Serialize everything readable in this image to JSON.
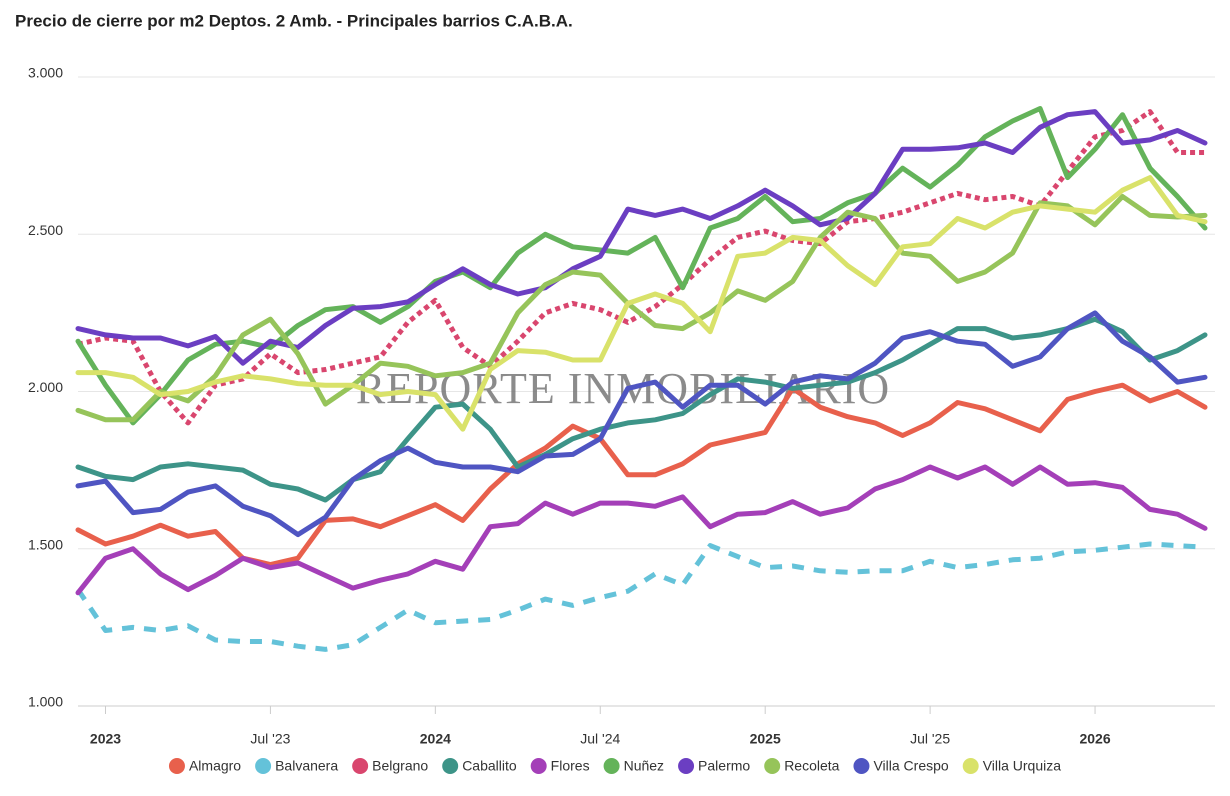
{
  "chart_data": {
    "type": "line",
    "title": "Precio de cierre por m2 Deptos. 2 Amb. - Principales barrios C.A.B.A.",
    "watermark": "REPORTE INMOBILIARIO",
    "x": [
      "2022-12",
      "2023-01",
      "2023-02",
      "2023-03",
      "2023-04",
      "2023-05",
      "2023-06",
      "2023-07",
      "2023-08",
      "2023-09",
      "2023-10",
      "2023-11",
      "2023-12",
      "2024-01",
      "2024-02",
      "2024-03",
      "2024-04",
      "2024-05",
      "2024-06",
      "2024-07",
      "2024-08",
      "2024-09",
      "2024-10",
      "2024-11",
      "2024-12",
      "2025-01",
      "2025-02",
      "2025-03",
      "2025-04",
      "2025-05",
      "2025-06",
      "2025-07",
      "2025-08",
      "2025-09",
      "2025-10",
      "2025-11",
      "2025-12",
      "2026-01",
      "2026-02",
      "2026-03",
      "2026-04",
      "2026-05"
    ],
    "xlim": [
      "2022-12",
      "2026-05"
    ],
    "xticks": [
      {
        "value": "2023-01",
        "label": "2023"
      },
      {
        "value": "2023-07",
        "label": "Jul '23"
      },
      {
        "value": "2024-01",
        "label": "2024"
      },
      {
        "value": "2024-07",
        "label": "Jul '24"
      },
      {
        "value": "2025-01",
        "label": "2025"
      },
      {
        "value": "2025-07",
        "label": "Jul '25"
      },
      {
        "value": "2026-01",
        "label": "2026"
      }
    ],
    "ylim": [
      1000,
      3000
    ],
    "yticks": [
      {
        "value": 1000,
        "label": "1.000"
      },
      {
        "value": 1500,
        "label": "1.500"
      },
      {
        "value": 2000,
        "label": "2.000"
      },
      {
        "value": 2500,
        "label": "2.500"
      },
      {
        "value": 3000,
        "label": "3.000"
      }
    ],
    "grid": true,
    "legend": "bottom",
    "series": [
      {
        "name": "Almagro",
        "color": "#e8604c",
        "style": "solid",
        "values": [
          1560,
          1515,
          1540,
          1575,
          1540,
          1555,
          1470,
          1450,
          1470,
          1590,
          1595,
          1570,
          1605,
          1640,
          1590,
          1690,
          1770,
          1820,
          1890,
          1850,
          1735,
          1735,
          1770,
          1830,
          1850,
          1870,
          2010,
          1950,
          1920,
          1900,
          1860,
          1900,
          1965,
          1945,
          1910,
          1875,
          1975,
          2000,
          2020,
          1970,
          2000,
          1950
        ]
      },
      {
        "name": "Balvanera",
        "color": "#64c2d9",
        "style": "dashed",
        "values": [
          1370,
          1240,
          1250,
          1240,
          1255,
          1210,
          1205,
          1205,
          1190,
          1180,
          1195,
          1250,
          1305,
          1265,
          1270,
          1275,
          1305,
          1340,
          1320,
          1345,
          1365,
          1420,
          1385,
          1510,
          1475,
          1440,
          1445,
          1430,
          1425,
          1430,
          1430,
          1460,
          1440,
          1450,
          1465,
          1470,
          1490,
          1495,
          1505,
          1515,
          1510,
          1505
        ]
      },
      {
        "name": "Belgrano",
        "color": "#d9466e",
        "style": "dotted",
        "values": [
          2150,
          2170,
          2160,
          2000,
          1900,
          2020,
          2040,
          2120,
          2060,
          2070,
          2090,
          2110,
          2220,
          2290,
          2140,
          2080,
          2160,
          2250,
          2280,
          2260,
          2220,
          2270,
          2340,
          2420,
          2490,
          2510,
          2480,
          2470,
          2540,
          2550,
          2570,
          2600,
          2630,
          2610,
          2620,
          2590,
          2700,
          2810,
          2830,
          2890,
          2760,
          2760
        ]
      },
      {
        "name": "Caballito",
        "color": "#3d9488",
        "style": "solid",
        "values": [
          1760,
          1730,
          1720,
          1760,
          1770,
          1760,
          1750,
          1705,
          1690,
          1655,
          1720,
          1745,
          1850,
          1950,
          1960,
          1880,
          1760,
          1800,
          1850,
          1880,
          1900,
          1910,
          1930,
          1990,
          2040,
          2030,
          2010,
          2020,
          2030,
          2060,
          2100,
          2150,
          2200,
          2200,
          2170,
          2180,
          2200,
          2230,
          2190,
          2100,
          2130,
          2180
        ]
      },
      {
        "name": "Flores",
        "color": "#a43fb8",
        "style": "solid",
        "values": [
          1360,
          1470,
          1500,
          1420,
          1370,
          1415,
          1470,
          1440,
          1455,
          1415,
          1375,
          1400,
          1420,
          1460,
          1435,
          1570,
          1580,
          1645,
          1610,
          1645,
          1645,
          1635,
          1665,
          1570,
          1610,
          1615,
          1650,
          1610,
          1630,
          1690,
          1720,
          1760,
          1725,
          1760,
          1705,
          1760,
          1705,
          1710,
          1695,
          1625,
          1610,
          1565
        ]
      },
      {
        "name": "Nuñez",
        "color": "#64b35a",
        "style": "solid",
        "values": [
          2160,
          2020,
          1900,
          1990,
          2100,
          2150,
          2160,
          2140,
          2210,
          2260,
          2270,
          2220,
          2270,
          2350,
          2380,
          2330,
          2440,
          2500,
          2460,
          2450,
          2440,
          2490,
          2330,
          2520,
          2550,
          2620,
          2540,
          2550,
          2600,
          2630,
          2710,
          2650,
          2720,
          2810,
          2860,
          2900,
          2680,
          2770,
          2880,
          2710,
          2620,
          2520
        ]
      },
      {
        "name": "Palermo",
        "color": "#6b3ec2",
        "style": "solid",
        "values": [
          2200,
          2180,
          2170,
          2170,
          2145,
          2175,
          2090,
          2160,
          2140,
          2210,
          2265,
          2270,
          2285,
          2340,
          2390,
          2340,
          2310,
          2330,
          2390,
          2430,
          2580,
          2560,
          2580,
          2550,
          2590,
          2640,
          2590,
          2530,
          2550,
          2630,
          2770,
          2770,
          2775,
          2790,
          2760,
          2840,
          2880,
          2890,
          2790,
          2800,
          2830,
          2790
        ]
      },
      {
        "name": "Recoleta",
        "color": "#96c45a",
        "style": "solid",
        "values": [
          1940,
          1910,
          1910,
          2000,
          1970,
          2050,
          2180,
          2230,
          2120,
          1960,
          2020,
          2090,
          2080,
          2050,
          2060,
          2090,
          2250,
          2340,
          2380,
          2370,
          2280,
          2210,
          2200,
          2250,
          2320,
          2290,
          2350,
          2490,
          2570,
          2550,
          2440,
          2430,
          2350,
          2380,
          2440,
          2600,
          2590,
          2530,
          2620,
          2560,
          2555,
          2560
        ]
      },
      {
        "name": "Villa Crespo",
        "color": "#4f55c2",
        "style": "solid",
        "values": [
          1700,
          1715,
          1615,
          1625,
          1680,
          1700,
          1635,
          1605,
          1545,
          1600,
          1720,
          1780,
          1820,
          1775,
          1760,
          1760,
          1745,
          1795,
          1800,
          1850,
          2010,
          2030,
          1950,
          2020,
          2020,
          1960,
          2030,
          2050,
          2040,
          2090,
          2170,
          2190,
          2160,
          2150,
          2080,
          2110,
          2200,
          2250,
          2160,
          2110,
          2030,
          2045
        ]
      },
      {
        "name": "Villa Urquiza",
        "color": "#d9e26a",
        "style": "solid",
        "values": [
          2060,
          2060,
          2045,
          1990,
          2000,
          2030,
          2050,
          2040,
          2025,
          2020,
          2020,
          1990,
          2000,
          1990,
          1880,
          2070,
          2130,
          2125,
          2100,
          2100,
          2280,
          2310,
          2280,
          2190,
          2430,
          2440,
          2490,
          2480,
          2400,
          2340,
          2460,
          2470,
          2550,
          2520,
          2570,
          2590,
          2580,
          2570,
          2640,
          2680,
          2560,
          2540
        ]
      }
    ]
  }
}
